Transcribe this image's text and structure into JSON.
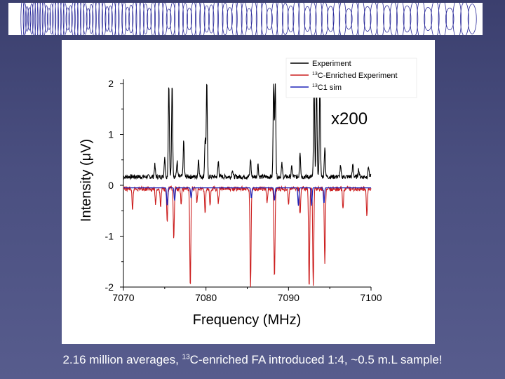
{
  "colors": {
    "experiment": "#000000",
    "enriched": "#cc1f1f",
    "sim": "#1f23b8",
    "banner_pattern": "#2a2a9a"
  },
  "caption": {
    "prefix": "2.16 million averages, ",
    "sup": "13",
    "suffix": "C-enriched FA introduced 1:4, ~0.5 m.L sample!"
  },
  "chart_data": {
    "type": "line",
    "xlabel": "Frequency (MHz)",
    "ylabel": "Intensity (μV)",
    "xlim": [
      7070,
      7100
    ],
    "ylim": [
      -2,
      2
    ],
    "x_ticks": [
      7070,
      7080,
      7090,
      7100
    ],
    "y_ticks": [
      -2,
      -1,
      0,
      1,
      2
    ],
    "annotation": "x200",
    "legend": {
      "position": "top-right",
      "entries": [
        {
          "label": "Experiment",
          "sup": "",
          "color": "#000000"
        },
        {
          "label": "C-Enriched Experiment",
          "sup": "13",
          "color": "#cc1f1f"
        },
        {
          "label": "C1 sim",
          "sup": "13",
          "color": "#1f23b8"
        }
      ]
    },
    "series": [
      {
        "name": "Experiment",
        "baseline": 0.15,
        "peaks": [
          {
            "x": 7073.8,
            "y": 0.38
          },
          {
            "x": 7075.0,
            "y": 0.55
          },
          {
            "x": 7075.5,
            "y": 2.0
          },
          {
            "x": 7075.9,
            "y": 2.0
          },
          {
            "x": 7076.5,
            "y": 0.45
          },
          {
            "x": 7077.3,
            "y": 0.85
          },
          {
            "x": 7079.1,
            "y": 0.5
          },
          {
            "x": 7079.9,
            "y": 0.9
          },
          {
            "x": 7080.1,
            "y": 2.0
          },
          {
            "x": 7081.5,
            "y": 0.45
          },
          {
            "x": 7083.2,
            "y": 0.3
          },
          {
            "x": 7085.4,
            "y": 0.5
          },
          {
            "x": 7086.3,
            "y": 0.4
          },
          {
            "x": 7088.2,
            "y": 2.0
          },
          {
            "x": 7088.4,
            "y": 2.0
          },
          {
            "x": 7089.2,
            "y": 0.4
          },
          {
            "x": 7090.4,
            "y": 0.35
          },
          {
            "x": 7091.4,
            "y": 0.65
          },
          {
            "x": 7093.1,
            "y": 2.0
          },
          {
            "x": 7093.4,
            "y": 2.0
          },
          {
            "x": 7093.8,
            "y": 2.0
          },
          {
            "x": 7094.4,
            "y": 0.75
          },
          {
            "x": 7096.3,
            "y": 0.35
          },
          {
            "x": 7097.8,
            "y": 0.4
          },
          {
            "x": 7098.5,
            "y": 0.3
          },
          {
            "x": 7099.7,
            "y": 0.35
          }
        ]
      },
      {
        "name": "C-Enriched Experiment",
        "baseline": -0.05,
        "peaks": [
          {
            "x": 7071.1,
            "y": -0.5
          },
          {
            "x": 7073.9,
            "y": -0.35
          },
          {
            "x": 7074.5,
            "y": -0.4
          },
          {
            "x": 7075.3,
            "y": -0.7
          },
          {
            "x": 7076.1,
            "y": -1.05
          },
          {
            "x": 7077.0,
            "y": -0.35
          },
          {
            "x": 7078.1,
            "y": -2.0
          },
          {
            "x": 7078.9,
            "y": -0.3
          },
          {
            "x": 7079.9,
            "y": -0.5
          },
          {
            "x": 7080.5,
            "y": -0.35
          },
          {
            "x": 7081.5,
            "y": -0.35
          },
          {
            "x": 7085.4,
            "y": -2.0
          },
          {
            "x": 7087.4,
            "y": -0.35
          },
          {
            "x": 7088.3,
            "y": -1.85
          },
          {
            "x": 7090.0,
            "y": -0.35
          },
          {
            "x": 7091.4,
            "y": -0.55
          },
          {
            "x": 7092.5,
            "y": -2.0
          },
          {
            "x": 7093.0,
            "y": -2.0
          },
          {
            "x": 7094.4,
            "y": -1.55
          },
          {
            "x": 7096.6,
            "y": -0.45
          },
          {
            "x": 7099.5,
            "y": -0.6
          }
        ]
      },
      {
        "name": "C1 sim",
        "baseline": -0.05,
        "peaks": [
          {
            "x": 7075.3,
            "y": -0.4
          },
          {
            "x": 7076.2,
            "y": -0.3
          },
          {
            "x": 7078.2,
            "y": -0.25
          },
          {
            "x": 7085.5,
            "y": -0.25
          },
          {
            "x": 7088.3,
            "y": -0.3
          },
          {
            "x": 7091.2,
            "y": -0.4
          },
          {
            "x": 7092.8,
            "y": -0.4
          },
          {
            "x": 7094.3,
            "y": -0.35
          }
        ]
      }
    ]
  }
}
